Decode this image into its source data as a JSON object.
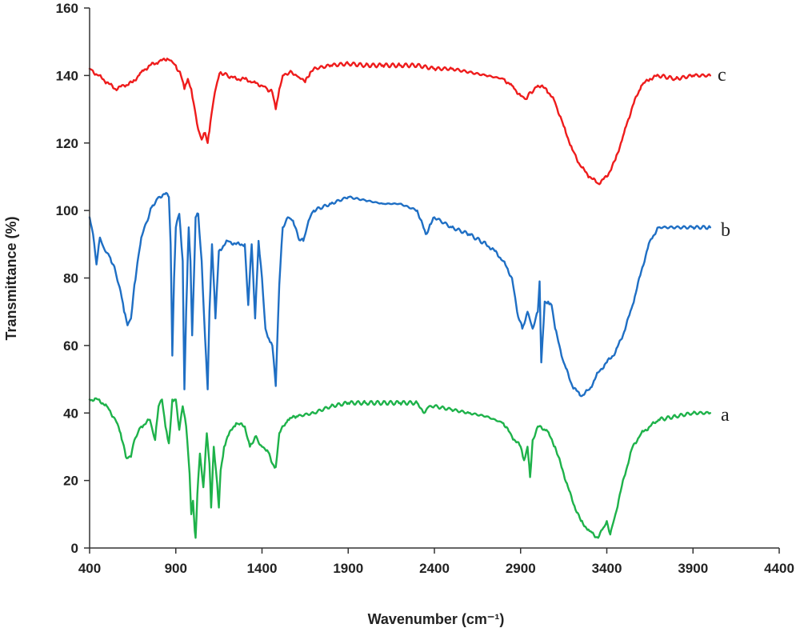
{
  "chart_data": {
    "type": "line",
    "title": "",
    "xlabel": "Wavenumber (cm⁻¹)",
    "ylabel": "Transmittance  (%)",
    "xlim": [
      400,
      4400
    ],
    "ylim": [
      0,
      160
    ],
    "x_ticks": [
      400,
      900,
      1400,
      1900,
      2400,
      2900,
      3400,
      3900,
      4400
    ],
    "y_ticks": [
      0,
      20,
      40,
      60,
      80,
      100,
      120,
      140,
      160
    ],
    "x_tick_labels": [
      "400",
      "900",
      "1400",
      "1900",
      "2400",
      "2900",
      "3400",
      "3900",
      "4400"
    ],
    "y_tick_labels": [
      "0",
      "20",
      "40",
      "60",
      "80",
      "100",
      "120",
      "140",
      "160"
    ],
    "grid": false,
    "legend": "none",
    "series": [
      {
        "name": "c",
        "color": "#ee1c1c",
        "points": [
          [
            400,
            142
          ],
          [
            450,
            140
          ],
          [
            500,
            138
          ],
          [
            550,
            136
          ],
          [
            600,
            137
          ],
          [
            650,
            138
          ],
          [
            700,
            141
          ],
          [
            750,
            143
          ],
          [
            800,
            144
          ],
          [
            850,
            145
          ],
          [
            880,
            144
          ],
          [
            900,
            143
          ],
          [
            930,
            140
          ],
          [
            950,
            136
          ],
          [
            970,
            139
          ],
          [
            990,
            136
          ],
          [
            1010,
            130
          ],
          [
            1030,
            124
          ],
          [
            1050,
            121
          ],
          [
            1070,
            123
          ],
          [
            1085,
            120
          ],
          [
            1100,
            126
          ],
          [
            1120,
            133
          ],
          [
            1140,
            138
          ],
          [
            1160,
            141
          ],
          [
            1200,
            140
          ],
          [
            1250,
            139
          ],
          [
            1300,
            139
          ],
          [
            1350,
            138
          ],
          [
            1400,
            137
          ],
          [
            1430,
            136
          ],
          [
            1460,
            135
          ],
          [
            1480,
            130
          ],
          [
            1500,
            136
          ],
          [
            1520,
            140
          ],
          [
            1560,
            141
          ],
          [
            1600,
            140
          ],
          [
            1630,
            139
          ],
          [
            1650,
            138
          ],
          [
            1680,
            141
          ],
          [
            1700,
            142
          ],
          [
            1800,
            143
          ],
          [
            1900,
            143.5
          ],
          [
            2000,
            143
          ],
          [
            2100,
            143
          ],
          [
            2200,
            143
          ],
          [
            2300,
            143
          ],
          [
            2400,
            142
          ],
          [
            2500,
            142
          ],
          [
            2600,
            141
          ],
          [
            2700,
            140
          ],
          [
            2800,
            139
          ],
          [
            2850,
            137
          ],
          [
            2900,
            134
          ],
          [
            2930,
            133
          ],
          [
            2960,
            135
          ],
          [
            3000,
            137
          ],
          [
            3050,
            136
          ],
          [
            3100,
            132
          ],
          [
            3150,
            125
          ],
          [
            3200,
            118
          ],
          [
            3250,
            113
          ],
          [
            3300,
            110
          ],
          [
            3350,
            108
          ],
          [
            3400,
            110
          ],
          [
            3450,
            115
          ],
          [
            3500,
            123
          ],
          [
            3550,
            131
          ],
          [
            3600,
            137
          ],
          [
            3650,
            139
          ],
          [
            3700,
            140
          ],
          [
            3800,
            139
          ],
          [
            3900,
            140
          ],
          [
            4000,
            140
          ]
        ]
      },
      {
        "name": "b",
        "color": "#1f6fc4",
        "points": [
          [
            400,
            98
          ],
          [
            420,
            93
          ],
          [
            440,
            84
          ],
          [
            460,
            92
          ],
          [
            490,
            88
          ],
          [
            520,
            86
          ],
          [
            550,
            82
          ],
          [
            580,
            76
          ],
          [
            600,
            70
          ],
          [
            620,
            66
          ],
          [
            640,
            68
          ],
          [
            660,
            78
          ],
          [
            700,
            92
          ],
          [
            760,
            101
          ],
          [
            800,
            104
          ],
          [
            850,
            105
          ],
          [
            860,
            104
          ],
          [
            870,
            90
          ],
          [
            880,
            57
          ],
          [
            890,
            80
          ],
          [
            900,
            95
          ],
          [
            920,
            99
          ],
          [
            940,
            85
          ],
          [
            950,
            47
          ],
          [
            960,
            70
          ],
          [
            975,
            95
          ],
          [
            985,
            85
          ],
          [
            995,
            63
          ],
          [
            1005,
            80
          ],
          [
            1015,
            98
          ],
          [
            1030,
            99
          ],
          [
            1050,
            85
          ],
          [
            1070,
            62
          ],
          [
            1085,
            47
          ],
          [
            1095,
            70
          ],
          [
            1110,
            90
          ],
          [
            1130,
            68
          ],
          [
            1150,
            88
          ],
          [
            1200,
            91
          ],
          [
            1250,
            90
          ],
          [
            1300,
            90
          ],
          [
            1320,
            72
          ],
          [
            1340,
            90
          ],
          [
            1360,
            68
          ],
          [
            1380,
            91
          ],
          [
            1400,
            80
          ],
          [
            1420,
            65
          ],
          [
            1440,
            62
          ],
          [
            1460,
            60
          ],
          [
            1480,
            48
          ],
          [
            1500,
            78
          ],
          [
            1520,
            95
          ],
          [
            1550,
            98
          ],
          [
            1580,
            97
          ],
          [
            1610,
            92
          ],
          [
            1640,
            91
          ],
          [
            1670,
            97
          ],
          [
            1700,
            100
          ],
          [
            1800,
            102
          ],
          [
            1900,
            104
          ],
          [
            2000,
            103
          ],
          [
            2100,
            102
          ],
          [
            2200,
            102
          ],
          [
            2300,
            100
          ],
          [
            2350,
            93
          ],
          [
            2380,
            96
          ],
          [
            2400,
            98
          ],
          [
            2500,
            95
          ],
          [
            2600,
            93
          ],
          [
            2700,
            90
          ],
          [
            2750,
            88
          ],
          [
            2800,
            85
          ],
          [
            2850,
            80
          ],
          [
            2880,
            70
          ],
          [
            2910,
            65
          ],
          [
            2940,
            70
          ],
          [
            2970,
            65
          ],
          [
            3000,
            70
          ],
          [
            3010,
            79
          ],
          [
            3020,
            55
          ],
          [
            3040,
            73
          ],
          [
            3060,
            73
          ],
          [
            3080,
            72
          ],
          [
            3100,
            65
          ],
          [
            3150,
            55
          ],
          [
            3200,
            48
          ],
          [
            3250,
            45
          ],
          [
            3300,
            47
          ],
          [
            3350,
            52
          ],
          [
            3400,
            55
          ],
          [
            3450,
            58
          ],
          [
            3500,
            64
          ],
          [
            3550,
            72
          ],
          [
            3600,
            82
          ],
          [
            3650,
            91
          ],
          [
            3700,
            95
          ],
          [
            3800,
            95
          ],
          [
            3900,
            95
          ],
          [
            4000,
            95
          ]
        ]
      },
      {
        "name": "a",
        "color": "#1eb24a",
        "points": [
          [
            400,
            44
          ],
          [
            450,
            44
          ],
          [
            500,
            42
          ],
          [
            550,
            38
          ],
          [
            580,
            34
          ],
          [
            610,
            27
          ],
          [
            640,
            27
          ],
          [
            660,
            32
          ],
          [
            700,
            36
          ],
          [
            750,
            38
          ],
          [
            780,
            32
          ],
          [
            800,
            42
          ],
          [
            820,
            44
          ],
          [
            840,
            36
          ],
          [
            860,
            31
          ],
          [
            880,
            44
          ],
          [
            900,
            44
          ],
          [
            920,
            35
          ],
          [
            940,
            42
          ],
          [
            960,
            36
          ],
          [
            980,
            22
          ],
          [
            990,
            10
          ],
          [
            1000,
            14
          ],
          [
            1010,
            5
          ],
          [
            1015,
            3
          ],
          [
            1025,
            16
          ],
          [
            1040,
            28
          ],
          [
            1060,
            18
          ],
          [
            1080,
            34
          ],
          [
            1095,
            25
          ],
          [
            1105,
            12
          ],
          [
            1120,
            30
          ],
          [
            1140,
            19
          ],
          [
            1150,
            12
          ],
          [
            1160,
            23
          ],
          [
            1180,
            30
          ],
          [
            1200,
            33
          ],
          [
            1250,
            37
          ],
          [
            1300,
            36
          ],
          [
            1330,
            30
          ],
          [
            1360,
            33
          ],
          [
            1400,
            30
          ],
          [
            1430,
            29
          ],
          [
            1460,
            25
          ],
          [
            1480,
            24
          ],
          [
            1500,
            34
          ],
          [
            1550,
            38
          ],
          [
            1600,
            39
          ],
          [
            1700,
            40
          ],
          [
            1800,
            42
          ],
          [
            1900,
            43
          ],
          [
            2000,
            43
          ],
          [
            2100,
            43
          ],
          [
            2200,
            43
          ],
          [
            2300,
            43
          ],
          [
            2340,
            40
          ],
          [
            2370,
            42
          ],
          [
            2400,
            42
          ],
          [
            2500,
            41
          ],
          [
            2600,
            40
          ],
          [
            2700,
            39
          ],
          [
            2800,
            37
          ],
          [
            2850,
            33
          ],
          [
            2900,
            30
          ],
          [
            2920,
            26
          ],
          [
            2940,
            30
          ],
          [
            2955,
            21
          ],
          [
            2970,
            32
          ],
          [
            3000,
            36
          ],
          [
            3050,
            35
          ],
          [
            3100,
            30
          ],
          [
            3150,
            22
          ],
          [
            3200,
            14
          ],
          [
            3250,
            8
          ],
          [
            3300,
            5
          ],
          [
            3350,
            3
          ],
          [
            3380,
            6
          ],
          [
            3400,
            8
          ],
          [
            3420,
            4
          ],
          [
            3450,
            10
          ],
          [
            3500,
            21
          ],
          [
            3550,
            30
          ],
          [
            3600,
            34
          ],
          [
            3650,
            36
          ],
          [
            3700,
            38
          ],
          [
            3800,
            39
          ],
          [
            3900,
            40
          ],
          [
            4000,
            40
          ]
        ]
      }
    ]
  }
}
